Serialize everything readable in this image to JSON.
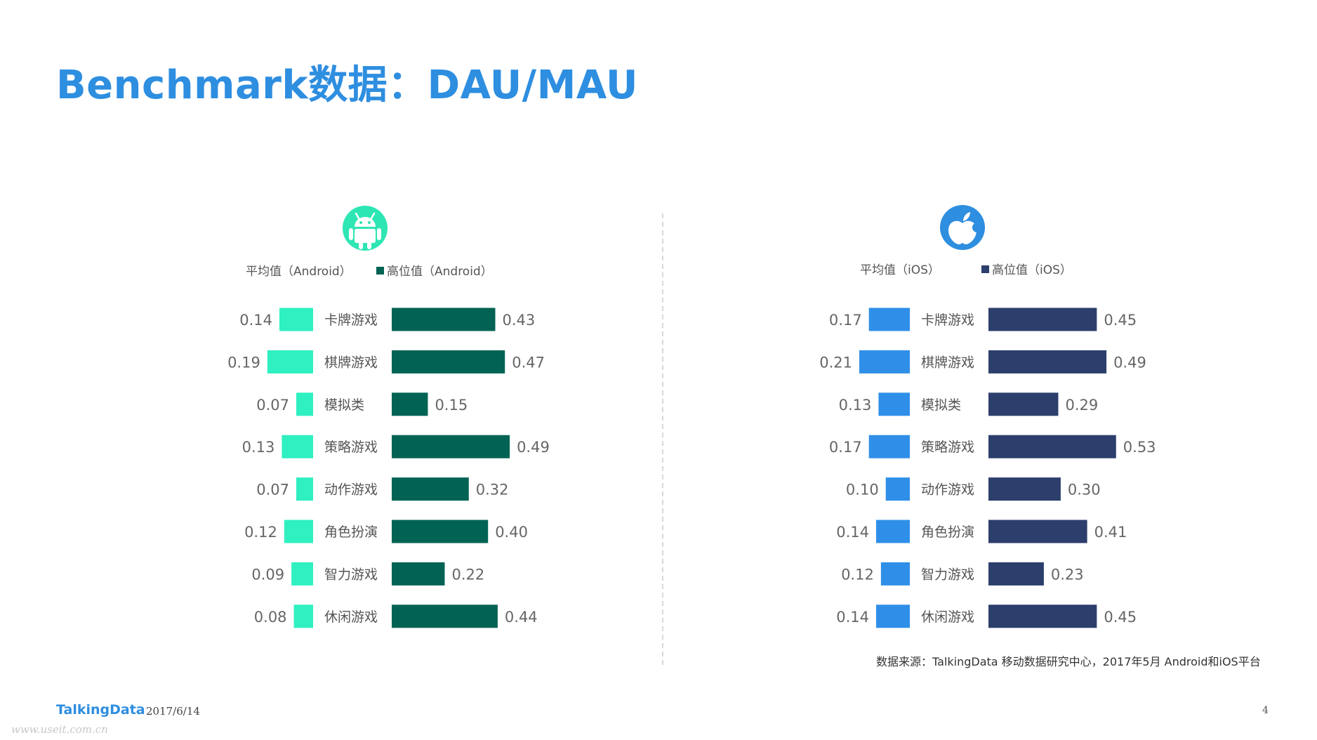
{
  "title": "Benchmark数据：DAU/MAU",
  "footer": {
    "logo": "TalkingData",
    "date": "2017/6/14",
    "page_number": "4",
    "watermark": "www.useit.com.cn"
  },
  "source": "数据来源：TalkingData 移动数据研究中心，2017年5月 Android和iOS平台",
  "colors": {
    "title": "#2e8ee0",
    "android_avg": "#2ef0c0",
    "android_high": "#006353",
    "ios_avg": "#2f8fe8",
    "ios_high": "#2c3e6c",
    "android_icon": "#2ee6b4",
    "ios_icon": "#2e8ee0"
  },
  "chart_data": [
    {
      "type": "bar",
      "platform": "Android",
      "icon": "android-icon",
      "categories": [
        "卡牌游戏",
        "棋牌游戏",
        "模拟类",
        "策略游戏",
        "动作游戏",
        "角色扮演",
        "智力游戏",
        "休闲游戏"
      ],
      "series": [
        {
          "name": "平均值（Android）",
          "values": [
            0.14,
            0.19,
            0.07,
            0.13,
            0.07,
            0.12,
            0.09,
            0.08
          ]
        },
        {
          "name": "高位值（Android）",
          "values": [
            0.43,
            0.47,
            0.15,
            0.49,
            0.32,
            0.4,
            0.22,
            0.44
          ]
        }
      ]
    },
    {
      "type": "bar",
      "platform": "iOS",
      "icon": "apple-icon",
      "categories": [
        "卡牌游戏",
        "棋牌游戏",
        "模拟类",
        "策略游戏",
        "动作游戏",
        "角色扮演",
        "智力游戏",
        "休闲游戏"
      ],
      "series": [
        {
          "name": "平均值（iOS）",
          "values": [
            0.17,
            0.21,
            0.13,
            0.17,
            0.1,
            0.14,
            0.12,
            0.14
          ]
        },
        {
          "name": "高位值（iOS）",
          "values": [
            0.45,
            0.49,
            0.29,
            0.53,
            0.3,
            0.41,
            0.23,
            0.45
          ]
        }
      ]
    }
  ]
}
